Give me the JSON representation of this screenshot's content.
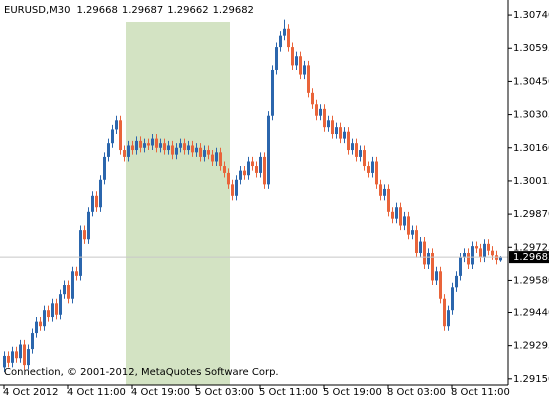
{
  "chart_data": {
    "type": "candlestick",
    "symbol": "EURUSD,M30",
    "footer": "Connection, © 2001-2012, MetaQuotes Software Corp.",
    "up_color": "#2b66ad",
    "down_color": "#e9643a",
    "categories": [
      "4 Oct 2012",
      null,
      null,
      null,
      null,
      null,
      null,
      null,
      null,
      null,
      null,
      null,
      null,
      null,
      null,
      null,
      "4 Oct 11:00",
      null,
      null,
      null,
      null,
      null,
      null,
      null,
      null,
      null,
      null,
      null,
      null,
      null,
      null,
      null,
      "4 Oct 19:00",
      null,
      null,
      null,
      null,
      null,
      null,
      null,
      null,
      null,
      null,
      null,
      null,
      null,
      null,
      null,
      "5 Oct 03:00",
      null,
      null,
      null,
      null,
      null,
      null,
      null,
      null,
      null,
      null,
      null,
      null,
      null,
      null,
      null,
      "5 Oct 11:00",
      null,
      null,
      null,
      null,
      null,
      null,
      null,
      null,
      null,
      null,
      null,
      null,
      null,
      null,
      null,
      "5 Oct 19:00",
      null,
      null,
      null,
      null,
      null,
      null,
      null,
      null,
      null,
      null,
      null,
      null,
      null,
      null,
      null,
      "8 Oct 03:00",
      null,
      null,
      null,
      null,
      null,
      null,
      null,
      null,
      null,
      null,
      null,
      null,
      null,
      null,
      null,
      "8 Oct 11:00",
      null,
      null,
      null,
      null,
      null,
      null,
      null,
      null,
      null,
      null,
      null,
      null
    ],
    "open": [
      1.292,
      1.2925,
      1.2922,
      1.2927,
      1.2924,
      1.293,
      1.2921,
      1.2928,
      1.2935,
      1.294,
      1.2938,
      1.2945,
      1.2942,
      1.2948,
      1.2943,
      1.2952,
      1.2956,
      1.295,
      1.2962,
      1.296,
      1.298,
      1.2976,
      1.2988,
      1.2995,
      1.299,
      1.3002,
      1.3012,
      1.3018,
      1.3024,
      1.3028,
      1.3015,
      1.3012,
      1.3017,
      1.3015,
      1.3019,
      1.3016,
      1.3018,
      1.3017,
      1.302,
      1.3016,
      1.3018,
      1.3015,
      1.3017,
      1.3013,
      1.3016,
      1.3018,
      1.3015,
      1.3017,
      1.3014,
      1.3016,
      1.3012,
      1.3015,
      1.3013,
      1.301,
      1.3014,
      1.3008,
      1.3005,
      1.3,
      1.2995,
      1.3002,
      1.3006,
      1.3004,
      1.301,
      1.3008,
      1.3005,
      1.3012,
      1.3,
      1.303,
      1.305,
      1.306,
      1.3065,
      1.3068,
      1.306,
      1.3052,
      1.3056,
      1.3048,
      1.3052,
      1.304,
      1.3035,
      1.303,
      1.3033,
      1.3025,
      1.3028,
      1.3022,
      1.3025,
      1.302,
      1.3023,
      1.3015,
      1.3018,
      1.3012,
      1.3015,
      1.3008,
      1.3005,
      1.301,
      1.3,
      1.2995,
      1.2998,
      1.2988,
      1.2985,
      1.299,
      1.2982,
      1.2986,
      1.2978,
      1.298,
      1.297,
      1.2975,
      1.2965,
      1.297,
      1.2958,
      1.2962,
      1.295,
      1.2938,
      1.2945,
      1.2955,
      1.296,
      1.2968,
      1.297,
      1.2965,
      1.2973,
      1.2972,
      1.2968,
      1.2974,
      1.2971,
      1.2969,
      1.29668
    ],
    "high": [
      1.2927,
      1.2927,
      1.2929,
      1.2929,
      1.2932,
      1.2932,
      1.293,
      1.2937,
      1.2942,
      1.2942,
      1.2947,
      1.2947,
      1.295,
      1.295,
      1.2954,
      1.2958,
      1.2958,
      1.2964,
      1.2964,
      1.2982,
      1.2982,
      1.299,
      1.2997,
      1.2997,
      1.3004,
      1.3014,
      1.302,
      1.3026,
      1.303,
      1.303,
      1.3017,
      1.3019,
      1.3019,
      1.3021,
      1.3021,
      1.302,
      1.302,
      1.3022,
      1.3022,
      1.302,
      1.302,
      1.3019,
      1.3019,
      1.3018,
      1.302,
      1.302,
      1.3019,
      1.3019,
      1.3018,
      1.3018,
      1.3017,
      1.3017,
      1.3015,
      1.3016,
      1.3016,
      1.301,
      1.3007,
      1.3002,
      1.3004,
      1.3008,
      1.3008,
      1.3012,
      1.3012,
      1.301,
      1.3014,
      1.3014,
      1.3032,
      1.3052,
      1.3062,
      1.3067,
      1.3072,
      1.307,
      1.3062,
      1.3058,
      1.3058,
      1.3054,
      1.3054,
      1.3042,
      1.3037,
      1.3035,
      1.3035,
      1.303,
      1.303,
      1.3027,
      1.3027,
      1.3025,
      1.3025,
      1.302,
      1.302,
      1.3017,
      1.3017,
      1.301,
      1.3012,
      1.3012,
      1.3002,
      1.3,
      1.3,
      1.299,
      1.2992,
      1.2992,
      1.2988,
      1.2988,
      1.2982,
      1.2982,
      1.2977,
      1.2977,
      1.2972,
      1.2972,
      1.2964,
      1.2964,
      1.2952,
      1.2947,
      1.2957,
      1.2962,
      1.297,
      1.2972,
      1.2972,
      1.2975,
      1.2975,
      1.2974,
      1.2976,
      1.2976,
      1.2973,
      1.2971,
      1.29687
    ],
    "low": [
      1.2918,
      1.292,
      1.292,
      1.2922,
      1.2922,
      1.2919,
      1.2919,
      1.2926,
      1.2933,
      1.2936,
      1.2936,
      1.294,
      1.294,
      1.2941,
      1.2941,
      1.295,
      1.2948,
      1.2948,
      1.2958,
      1.2958,
      1.2974,
      1.2974,
      1.2986,
      1.2988,
      1.2988,
      1.3,
      1.301,
      1.3016,
      1.3022,
      1.3013,
      1.301,
      1.301,
      1.3013,
      1.3013,
      1.3014,
      1.3014,
      1.3015,
      1.3015,
      1.3014,
      1.3014,
      1.3013,
      1.3013,
      1.3011,
      1.3011,
      1.3014,
      1.3013,
      1.3013,
      1.3012,
      1.3012,
      1.301,
      1.301,
      1.3011,
      1.3008,
      1.3008,
      1.3006,
      1.3003,
      1.2998,
      1.2993,
      1.2993,
      1.3,
      1.3002,
      1.3002,
      1.3006,
      1.3003,
      1.3003,
      1.2998,
      1.2998,
      1.3028,
      1.3048,
      1.3058,
      1.3063,
      1.3058,
      1.305,
      1.305,
      1.3046,
      1.3046,
      1.3038,
      1.3033,
      1.3028,
      1.3028,
      1.3023,
      1.3023,
      1.302,
      1.302,
      1.3018,
      1.3018,
      1.3013,
      1.3013,
      1.301,
      1.301,
      1.3006,
      1.3003,
      1.3003,
      1.2998,
      1.2993,
      1.2993,
      1.2986,
      1.2983,
      1.2983,
      1.298,
      1.298,
      1.2976,
      1.2976,
      1.2968,
      1.2968,
      1.2963,
      1.2963,
      1.2956,
      1.2956,
      1.2948,
      1.2936,
      1.2936,
      1.2943,
      1.2953,
      1.2958,
      1.2966,
      1.2963,
      1.2963,
      1.297,
      1.2966,
      1.2966,
      1.2969,
      1.2967,
      1.2965,
      1.29662
    ],
    "close": [
      1.2925,
      1.2922,
      1.2927,
      1.2924,
      1.293,
      1.2921,
      1.2928,
      1.2935,
      1.294,
      1.2938,
      1.2945,
      1.2942,
      1.2948,
      1.2943,
      1.2952,
      1.2956,
      1.295,
      1.2962,
      1.296,
      1.298,
      1.2976,
      1.2988,
      1.2995,
      1.299,
      1.3002,
      1.3012,
      1.3018,
      1.3024,
      1.3028,
      1.3015,
      1.3012,
      1.3017,
      1.3015,
      1.3019,
      1.3016,
      1.3018,
      1.3017,
      1.302,
      1.3016,
      1.3018,
      1.3015,
      1.3017,
      1.3013,
      1.3016,
      1.3018,
      1.3015,
      1.3017,
      1.3014,
      1.3016,
      1.3012,
      1.3015,
      1.3013,
      1.301,
      1.3014,
      1.3008,
      1.3005,
      1.3,
      1.2995,
      1.3002,
      1.3006,
      1.3004,
      1.301,
      1.3008,
      1.3005,
      1.3012,
      1.3,
      1.303,
      1.305,
      1.306,
      1.3065,
      1.3068,
      1.306,
      1.3052,
      1.3056,
      1.3048,
      1.3052,
      1.304,
      1.3035,
      1.303,
      1.3033,
      1.3025,
      1.3028,
      1.3022,
      1.3025,
      1.302,
      1.3023,
      1.3015,
      1.3018,
      1.3012,
      1.3015,
      1.3008,
      1.3005,
      1.301,
      1.3,
      1.2995,
      1.2998,
      1.2988,
      1.2985,
      1.299,
      1.2982,
      1.2986,
      1.2978,
      1.298,
      1.297,
      1.2975,
      1.2965,
      1.297,
      1.2958,
      1.2962,
      1.295,
      1.2938,
      1.2945,
      1.2955,
      1.296,
      1.2968,
      1.297,
      1.2965,
      1.2973,
      1.2972,
      1.2968,
      1.2974,
      1.2971,
      1.2969,
      1.2967,
      1.29682
    ],
    "ylim": [
      1.29123,
      1.30784
    ],
    "yticks": [
      {
        "value": 1.3074,
        "label": "1.30740"
      },
      1.30595,
      {
        "value": 1.3045,
        "label": "1.30450"
      },
      1.30305,
      {
        "value": 1.3016,
        "label": "1.30160"
      },
      1.30015,
      {
        "value": 1.2987,
        "label": "1.29870"
      },
      1.29725,
      {
        "value": 1.2958,
        "label": "1.29580"
      },
      {
        "value": 1.2944,
        "label": "1.29440"
      },
      1.29295,
      {
        "value": 1.2915,
        "label": "1.29150"
      }
    ]
  }
}
